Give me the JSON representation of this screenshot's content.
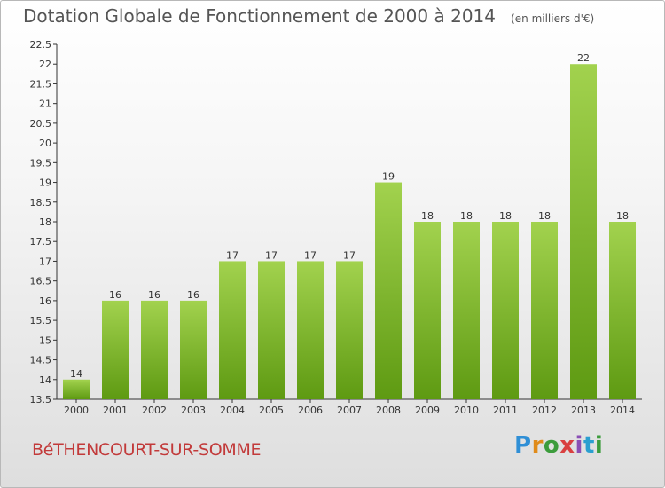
{
  "header": {
    "title": "Dotation Globale de Fonctionnement de 2000 à 2014",
    "unit_note": "(en milliers d'€)"
  },
  "footer": {
    "commune": "BéTHENCOURT-SUR-SOMME",
    "logo_letters": [
      "P",
      "r",
      "o",
      "x",
      "i",
      "t",
      "i"
    ]
  },
  "chart_data": {
    "type": "bar",
    "title": "Dotation Globale de Fonctionnement de 2000 à 2014",
    "subtitle": "(en milliers d'€)",
    "categories": [
      "2000",
      "2001",
      "2002",
      "2003",
      "2004",
      "2005",
      "2006",
      "2007",
      "2008",
      "2009",
      "2010",
      "2011",
      "2012",
      "2013",
      "2014"
    ],
    "values": [
      14,
      16,
      16,
      16,
      17,
      17,
      17,
      17,
      19,
      18,
      18,
      18,
      18,
      22,
      18
    ],
    "data_labels": [
      "14",
      "16",
      "16",
      "16",
      "17",
      "17",
      "17",
      "17",
      "19",
      "18",
      "18",
      "18",
      "18",
      "22",
      "18"
    ],
    "ylim": [
      13.5,
      22.5
    ],
    "yticks": [
      "13.5",
      "14",
      "14.5",
      "15",
      "15.5",
      "16",
      "16.5",
      "17",
      "17.5",
      "18",
      "18.5",
      "19",
      "19.5",
      "20",
      "20.5",
      "21",
      "21.5",
      "22",
      "22.5"
    ],
    "grid": false,
    "colors": {
      "bar_top": "#a2d24e",
      "bar_bottom": "#5e9a12",
      "axis": "#333333",
      "text": "#333333"
    }
  }
}
